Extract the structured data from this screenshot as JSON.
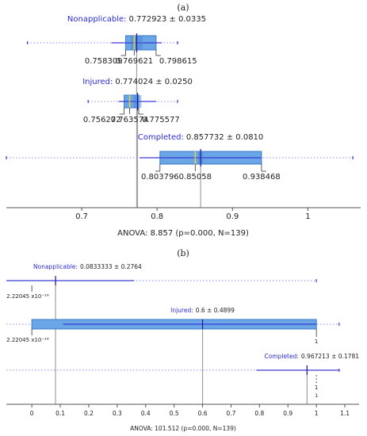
{
  "chart_data": [
    {
      "panel_label": "(a)",
      "type": "boxplot",
      "xlim": [
        0.6,
        1.07
      ],
      "ticks": [
        {
          "v": 0.7,
          "label": "0.7"
        },
        {
          "v": 0.8,
          "label": "0.8"
        },
        {
          "v": 0.9,
          "label": "0.9"
        },
        {
          "v": 1.0,
          "label": "1"
        }
      ],
      "xlabel": "ANOVA: 8.857 (p=0.000, N=139)",
      "groups": [
        {
          "name": "Nonapplicable:",
          "stat": "0.772923 ± 0.0335",
          "whisker": [
            0.6279,
            0.8271
          ],
          "box": [
            0.758309,
            0.798615
          ],
          "median": 0.769621,
          "mean": 0.772923,
          "ci": [
            0.7651,
            0.7807
          ],
          "sd_range": [
            0.7394,
            0.8064
          ],
          "labels": [
            "0.758309",
            "0.769621",
            "0.798615"
          ]
        },
        {
          "name": "Injured:",
          "stat": "0.774024 ± 0.0250",
          "whisker": [
            0.7085,
            0.8271
          ],
          "box": [
            0.756272,
            0.775577
          ],
          "median": 0.763574,
          "mean": 0.774024,
          "ci": [
            0.7689,
            0.7791
          ],
          "sd_range": [
            0.749,
            0.799
          ],
          "labels": [
            "0.756272",
            "0.763574",
            "0.775577"
          ]
        },
        {
          "name": "Completed:",
          "stat": "0.857732 ± 0.0810",
          "whisker": [
            0.6,
            1.0597
          ],
          "box": [
            0.803796,
            0.938468
          ],
          "median": 0.85058,
          "mean": 0.857732,
          "ci": [
            0.8546,
            0.8609
          ],
          "sd_range": [
            0.7767,
            0.9387
          ],
          "labels": [
            "0.803796",
            "0.85058",
            "0.938468"
          ]
        }
      ]
    },
    {
      "panel_label": "(b)",
      "type": "boxplot",
      "xlim": [
        -0.045,
        1.15
      ],
      "ticks": [
        {
          "v": 0,
          "label": "0"
        },
        {
          "v": 0.1,
          "label": "0.1"
        },
        {
          "v": 0.2,
          "label": "0.2"
        },
        {
          "v": 0.3,
          "label": "0.3"
        },
        {
          "v": 0.4,
          "label": "0.4"
        },
        {
          "v": 0.5,
          "label": "0.5"
        },
        {
          "v": 0.6,
          "label": "0.6"
        },
        {
          "v": 0.7,
          "label": "0.7"
        },
        {
          "v": 0.8,
          "label": "0.8"
        },
        {
          "v": 0.9,
          "label": "0.9"
        },
        {
          "v": 1.0,
          "label": "1"
        },
        {
          "v": 1.1,
          "label": "1.1"
        }
      ],
      "xlabel": "ANOVA: 101.512 (p=0.000, N=139)",
      "groups": [
        {
          "name": "Nonapplicable:",
          "stat": "0.0833333 ± 0.2764",
          "whisker": [
            -0.2,
            1.0
          ],
          "mean": 0.0833333,
          "sd_range": [
            -0.2,
            0.3597
          ],
          "low_label": "2.22045 x10⁻¹⁶"
        },
        {
          "name": "Injured:",
          "stat": "0.6 ± 0.4899",
          "whisker": [
            -0.2,
            1.08
          ],
          "box": [
            0.0,
            1.0
          ],
          "mean": 0.6,
          "sd_range": [
            0.1101,
            1.0
          ],
          "low_label": "2.22045 x10⁻¹⁶",
          "high_label": "1"
        },
        {
          "name": "Completed:",
          "stat": "0.967213 ± 0.1781",
          "whisker": [
            -0.2,
            1.08
          ],
          "mean": 0.967213,
          "sd_range": [
            0.7891,
            1.08
          ],
          "high_label": "1",
          "high_label_2": "1"
        }
      ]
    }
  ],
  "colors": {
    "box_fill": "#6aa6e6",
    "box_stroke": "#3b78c8",
    "whisker": "#3a3ad8",
    "dotted": "#8a8af0",
    "label_name": "#2b2bd6",
    "median": "#d6d24a",
    "mean": "#1a1aa0",
    "vline": "#a0a0a0",
    "axis": "#555555",
    "text": "#222222"
  }
}
